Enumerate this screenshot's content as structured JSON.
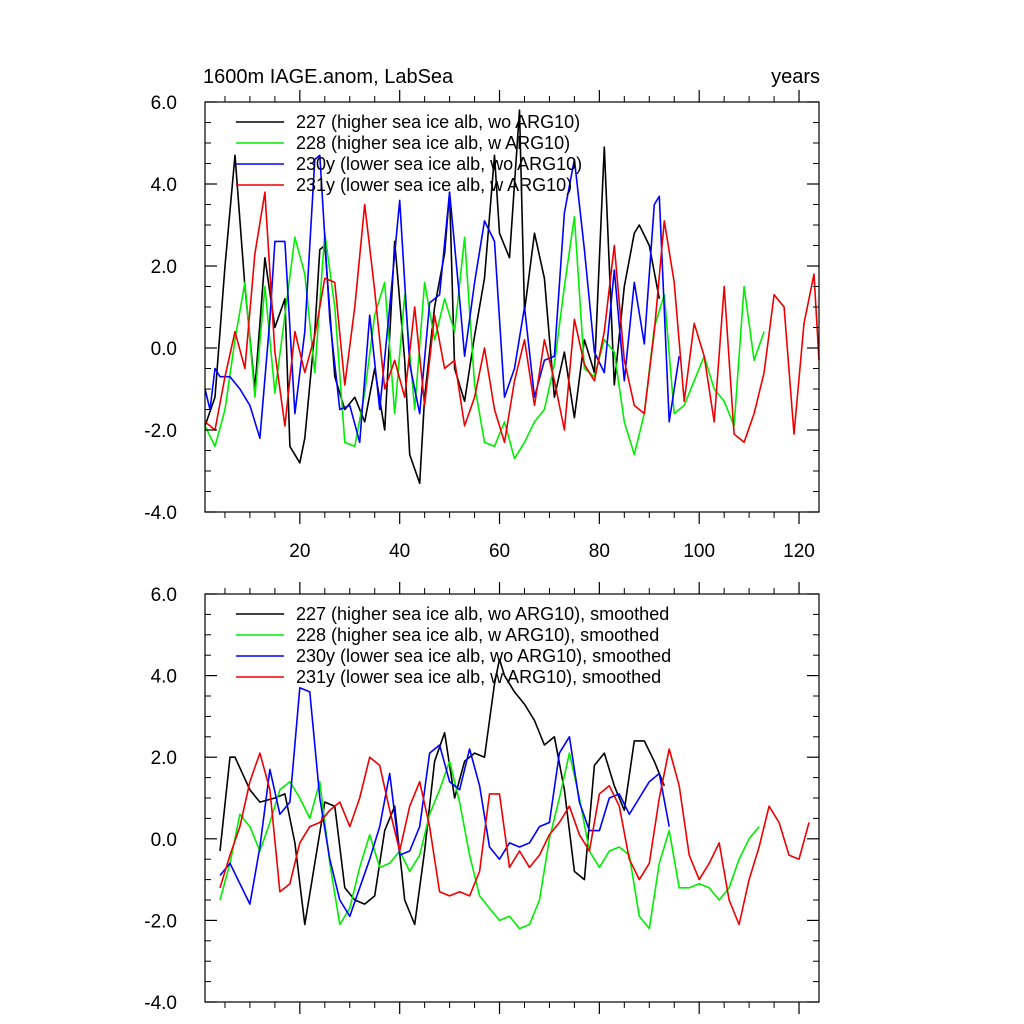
{
  "chart_data": [
    {
      "type": "line",
      "title": "1600m IAGE.anom, LabSea",
      "right_title": "years",
      "ylim": [
        -4.0,
        6.0
      ],
      "xlim": [
        1,
        124
      ],
      "yticks": [
        -4.0,
        -2.0,
        0.0,
        2.0,
        4.0,
        6.0
      ],
      "yticklabels": [
        "-4.0",
        "-2.0",
        "0.0",
        "2.0",
        "4.0",
        "6.0"
      ],
      "xticks": [
        20,
        40,
        60,
        80,
        100,
        120
      ],
      "xticklabels": [
        "20",
        "40",
        "60",
        "80",
        "100",
        "120"
      ],
      "legend_position": "top-left",
      "series": [
        {
          "name": "227 (higher sea ice alb, wo ARG10)",
          "color": "#000000",
          "x": [
            1,
            3,
            5,
            7,
            9,
            11,
            13,
            15,
            17,
            18,
            20,
            21,
            23,
            24,
            25,
            27,
            29,
            31,
            33,
            35,
            37,
            39,
            41,
            42,
            44,
            45,
            47,
            49,
            50,
            51,
            53,
            55,
            57,
            59,
            60,
            62,
            64,
            65,
            67,
            69,
            71,
            73,
            75,
            77,
            79,
            81,
            83,
            85,
            87,
            88,
            90,
            92
          ],
          "values": [
            -1.9,
            -1.2,
            2.0,
            4.7,
            1.5,
            -1.0,
            2.2,
            0.5,
            1.2,
            -2.4,
            -2.8,
            -2.2,
            0.4,
            2.4,
            2.5,
            -0.7,
            -1.5,
            -1.2,
            -1.8,
            -0.5,
            -2.0,
            2.6,
            -0.3,
            -2.6,
            -3.3,
            -1.2,
            1.0,
            2.3,
            3.8,
            -0.5,
            -1.3,
            0.3,
            1.7,
            4.7,
            2.8,
            2.2,
            5.8,
            0.9,
            2.8,
            1.7,
            -1.2,
            -0.1,
            -1.7,
            0.2,
            -0.6,
            4.9,
            -0.9,
            1.5,
            2.8,
            3.0,
            2.5,
            1.2
          ]
        },
        {
          "name": "228 (higher sea ice alb, w ARG10)",
          "color": "#00ee00",
          "x": [
            1,
            3,
            5,
            7,
            9,
            11,
            13,
            15,
            17,
            19,
            21,
            23,
            25,
            27,
            29,
            31,
            33,
            35,
            37,
            39,
            41,
            43,
            45,
            47,
            49,
            51,
            53,
            55,
            57,
            59,
            61,
            63,
            65,
            67,
            69,
            71,
            73,
            75,
            77,
            79,
            81,
            83,
            85,
            87,
            89,
            91,
            93,
            95,
            97,
            99,
            101,
            103,
            105,
            107,
            109,
            111,
            113
          ],
          "values": [
            -1.9,
            -2.4,
            -1.5,
            0.2,
            1.6,
            -1.2,
            1.5,
            -1.1,
            0.8,
            2.7,
            1.8,
            -0.6,
            2.8,
            1.0,
            -2.3,
            -2.4,
            -1.1,
            0.8,
            1.6,
            -1.6,
            1.3,
            -1.5,
            1.6,
            0.2,
            1.2,
            0.4,
            2.7,
            -0.9,
            -2.3,
            -2.4,
            -1.8,
            -2.7,
            -2.3,
            -1.8,
            -1.5,
            -0.4,
            1.5,
            3.2,
            -0.5,
            -0.7,
            0.2,
            -0.1,
            -1.8,
            -2.6,
            -1.6,
            0.5,
            1.3,
            -1.6,
            -1.4,
            -0.8,
            -0.2,
            -1.0,
            -1.3,
            -1.9,
            1.5,
            -0.3,
            0.4
          ]
        },
        {
          "name": "230y (lower sea ice alb, wo ARG10)",
          "color": "#0000ff",
          "x": [
            1,
            2,
            3,
            4,
            6,
            8,
            10,
            12,
            14,
            15,
            17,
            19,
            21,
            23,
            24,
            26,
            28,
            30,
            32,
            34,
            36,
            38,
            40,
            42,
            44,
            46,
            48,
            50,
            52,
            53,
            55,
            57,
            59,
            61,
            63,
            65,
            67,
            69,
            71,
            73,
            75,
            77,
            79,
            81,
            83,
            85,
            87,
            89,
            91,
            92,
            94,
            96
          ],
          "values": [
            -1.0,
            -1.5,
            -0.5,
            -0.7,
            -0.7,
            -1.0,
            -1.4,
            -2.2,
            0.7,
            2.6,
            2.6,
            -1.6,
            0.4,
            4.6,
            4.7,
            0.7,
            -1.5,
            -1.4,
            -2.3,
            0.8,
            -1.5,
            1.0,
            3.6,
            -0.4,
            -1.6,
            1.1,
            1.3,
            3.8,
            1.2,
            -0.2,
            1.6,
            3.1,
            2.6,
            -1.2,
            -0.5,
            1.0,
            -1.2,
            -0.3,
            -0.2,
            3.3,
            4.6,
            2.4,
            -0.1,
            -0.6,
            1.9,
            -0.8,
            1.6,
            0.1,
            3.5,
            3.7,
            -1.8,
            -0.2
          ]
        },
        {
          "name": "231y (lower sea ice alb, w ARG10)",
          "color": "#ee0000",
          "x": [
            1,
            3,
            5,
            7,
            9,
            11,
            13,
            15,
            17,
            19,
            21,
            23,
            25,
            27,
            29,
            31,
            33,
            35,
            37,
            39,
            41,
            43,
            45,
            47,
            49,
            51,
            53,
            55,
            57,
            59,
            61,
            63,
            65,
            67,
            69,
            71,
            73,
            75,
            77,
            79,
            81,
            83,
            85,
            87,
            89,
            91,
            93,
            95,
            97,
            99,
            101,
            103,
            105,
            107,
            109,
            111,
            113,
            115,
            117,
            119,
            121,
            123,
            124
          ],
          "values": [
            -1.8,
            -2.0,
            -0.7,
            0.4,
            -0.5,
            2.3,
            3.8,
            -0.1,
            -1.9,
            0.4,
            -0.6,
            0.3,
            1.7,
            1.6,
            -0.9,
            1.0,
            3.5,
            1.4,
            -1.0,
            -0.3,
            -1.2,
            1.0,
            -1.4,
            0.8,
            -0.5,
            -0.3,
            -1.9,
            -1.2,
            0.0,
            -1.5,
            -2.3,
            -0.8,
            0.2,
            -1.4,
            0.2,
            -0.8,
            -2.0,
            0.7,
            -0.4,
            -0.8,
            0.4,
            2.5,
            -0.3,
            -1.4,
            -1.6,
            0.4,
            3.1,
            1.6,
            -1.3,
            0.6,
            -0.2,
            -1.8,
            1.5,
            -2.1,
            -2.3,
            -1.6,
            -0.6,
            1.3,
            1.0,
            -2.1,
            0.6,
            1.8,
            -0.3
          ]
        }
      ]
    },
    {
      "type": "line",
      "ylim": [
        -4.0,
        6.0
      ],
      "xlim": [
        1,
        124
      ],
      "yticks": [
        -4.0,
        -2.0,
        0.0,
        2.0,
        4.0,
        6.0
      ],
      "yticklabels": [
        "-4.0",
        "-2.0",
        "0.0",
        "2.0",
        "4.0",
        "6.0"
      ],
      "xticks": [
        20,
        40,
        60,
        80,
        100,
        120
      ],
      "legend_position": "top-left",
      "series": [
        {
          "name": "227 (higher sea ice alb, wo ARG10), smoothed",
          "color": "#000000",
          "x": [
            4,
            6,
            7,
            10,
            12,
            15,
            17,
            19,
            21,
            23,
            25,
            27,
            29,
            31,
            33,
            35,
            37,
            39,
            41,
            43,
            45,
            47,
            49,
            51,
            53,
            55,
            57,
            59,
            60,
            61,
            63,
            65,
            67,
            69,
            71,
            73,
            75,
            77,
            79,
            81,
            83,
            85,
            87,
            89,
            91,
            93
          ],
          "values": [
            -0.3,
            2.0,
            2.0,
            1.2,
            0.9,
            1.0,
            1.1,
            -0.1,
            -2.1,
            -0.6,
            0.9,
            0.8,
            -1.2,
            -1.5,
            -1.6,
            -1.4,
            0.2,
            0.8,
            -1.5,
            -2.1,
            -0.3,
            1.9,
            2.6,
            1.0,
            1.9,
            2.1,
            2.0,
            3.8,
            4.4,
            4.0,
            3.6,
            3.3,
            2.9,
            2.3,
            2.5,
            1.2,
            -0.8,
            -1.0,
            1.8,
            2.1,
            1.3,
            0.7,
            2.4,
            2.4,
            1.9,
            1.3
          ]
        },
        {
          "name": "228 (higher sea ice alb, w ARG10), smoothed",
          "color": "#00ee00",
          "x": [
            4,
            6,
            8,
            10,
            12,
            14,
            16,
            18,
            20,
            22,
            24,
            26,
            28,
            30,
            32,
            34,
            36,
            38,
            40,
            42,
            44,
            46,
            48,
            50,
            52,
            54,
            56,
            58,
            60,
            62,
            64,
            66,
            68,
            70,
            72,
            74,
            76,
            78,
            80,
            82,
            84,
            86,
            88,
            90,
            92,
            94,
            96,
            98,
            100,
            102,
            104,
            106,
            108,
            110,
            112
          ],
          "values": [
            -1.5,
            -0.6,
            0.6,
            0.3,
            -0.3,
            0.4,
            1.2,
            1.4,
            1.0,
            0.5,
            1.4,
            -0.6,
            -2.1,
            -1.7,
            -0.7,
            0.1,
            -0.7,
            -0.6,
            -0.3,
            -0.8,
            -0.4,
            0.6,
            1.2,
            1.9,
            0.9,
            -0.4,
            -1.4,
            -1.7,
            -2.0,
            -1.9,
            -2.2,
            -2.1,
            -1.5,
            0.0,
            1.0,
            2.1,
            1.0,
            -0.3,
            -0.7,
            -0.3,
            -0.2,
            -0.4,
            -1.9,
            -2.2,
            -0.6,
            0.2,
            -1.2,
            -1.2,
            -1.1,
            -1.2,
            -1.5,
            -1.2,
            -0.5,
            0.0,
            0.3
          ]
        },
        {
          "name": "230y (lower sea ice alb, wo ARG10), smoothed",
          "color": "#0000ff",
          "x": [
            4,
            6,
            8,
            10,
            12,
            14,
            16,
            18,
            20,
            22,
            24,
            26,
            28,
            30,
            32,
            34,
            36,
            38,
            40,
            42,
            44,
            46,
            48,
            50,
            52,
            54,
            56,
            58,
            60,
            62,
            64,
            66,
            68,
            70,
            72,
            74,
            76,
            78,
            80,
            82,
            84,
            86,
            88,
            90,
            92,
            94
          ],
          "values": [
            -0.9,
            -0.6,
            -1.1,
            -1.6,
            -0.2,
            1.7,
            0.6,
            0.9,
            3.7,
            3.6,
            1.0,
            -0.5,
            -1.5,
            -1.9,
            -1.2,
            -0.5,
            0.3,
            1.6,
            -0.4,
            -0.3,
            0.3,
            2.1,
            2.3,
            1.4,
            1.2,
            2.2,
            1.3,
            -0.2,
            -0.5,
            -0.1,
            -0.2,
            -0.1,
            0.3,
            0.4,
            2.1,
            2.5,
            0.9,
            0.2,
            0.2,
            1.0,
            1.1,
            0.6,
            1.0,
            1.4,
            1.6,
            0.3
          ]
        },
        {
          "name": "231y (lower sea ice alb, w ARG10), smoothed",
          "color": "#ee0000",
          "x": [
            4,
            6,
            8,
            10,
            12,
            14,
            16,
            18,
            20,
            22,
            24,
            26,
            28,
            30,
            32,
            34,
            36,
            38,
            40,
            42,
            44,
            46,
            48,
            50,
            52,
            54,
            56,
            58,
            60,
            62,
            64,
            66,
            68,
            70,
            72,
            74,
            76,
            78,
            80,
            82,
            84,
            86,
            88,
            90,
            92,
            94,
            96,
            98,
            100,
            102,
            104,
            106,
            108,
            110,
            112,
            114,
            116,
            118,
            120,
            122
          ],
          "values": [
            -1.2,
            -0.4,
            0.3,
            1.4,
            2.1,
            1.2,
            -1.3,
            -1.1,
            -0.1,
            0.3,
            0.4,
            0.7,
            0.9,
            0.3,
            1.0,
            2.0,
            1.8,
            0.7,
            -0.3,
            0.8,
            1.4,
            0.3,
            -1.3,
            -1.4,
            -1.3,
            -1.4,
            -0.8,
            1.1,
            1.1,
            -0.7,
            -0.3,
            -0.7,
            -0.4,
            0.1,
            0.4,
            0.8,
            0.1,
            -0.3,
            1.1,
            1.3,
            0.8,
            -0.5,
            -1.0,
            -0.6,
            1.0,
            2.2,
            1.3,
            -0.4,
            -1.0,
            -0.6,
            -0.1,
            -1.5,
            -2.1,
            -1.0,
            -0.2,
            0.8,
            0.4,
            -0.4,
            -0.5,
            0.4
          ]
        }
      ]
    }
  ]
}
